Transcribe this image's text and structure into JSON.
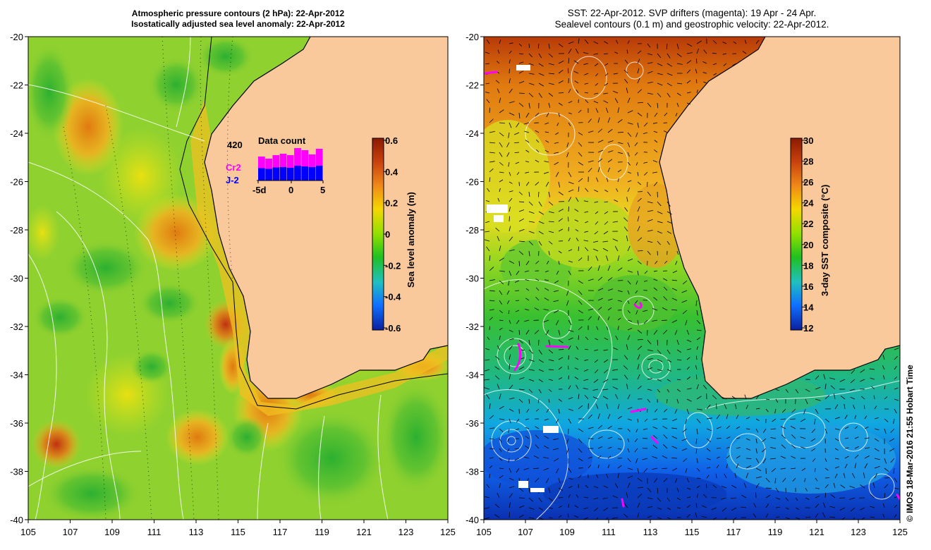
{
  "left_panel": {
    "title_line1": "Atmospheric pressure contours (2 hPa): 22-Apr-2012",
    "title_line2": "Isostatically adjusted sea level anomaly: 22-Apr-2012",
    "colorbar": {
      "label": "Sea level anomaly (m)",
      "ticks": [
        "0.6",
        "0.4",
        "0.2",
        "0",
        "-0.2",
        "-0.4",
        "-0.6"
      ],
      "colors": [
        "#8b1a00",
        "#d9541a",
        "#f0a020",
        "#f5e000",
        "#90e000",
        "#20c020",
        "#20c0c0",
        "#1070ff",
        "#0a20a0"
      ]
    },
    "inset": {
      "title": "Data count",
      "max_label": "420",
      "series": [
        {
          "name": "Cr2",
          "color": "#ff00ff"
        },
        {
          "name": "J-2",
          "color": "#0000ff"
        }
      ],
      "xticks": [
        "-5d",
        "0",
        "5"
      ],
      "bars_j2": [
        0.35,
        0.33,
        0.37,
        0.38,
        0.36,
        0.42,
        0.4,
        0.38,
        0.42
      ],
      "bars_total": [
        0.68,
        0.62,
        0.72,
        0.76,
        0.72,
        0.92,
        0.86,
        0.74,
        0.9
      ]
    }
  },
  "right_panel": {
    "title_line1": "SST: 22-Apr-2012. SVP drifters (magenta): 19 Apr - 24 Apr.",
    "title_line2": "Sealevel contours (0.1 m) and geostrophic velocity: 22-Apr-2012.",
    "colorbar": {
      "label": "3-day SST composite (°C)",
      "ticks": [
        "30",
        "28",
        "26",
        "24",
        "22",
        "20",
        "18",
        "16",
        "14",
        "12"
      ],
      "colors": [
        "#8b1a00",
        "#d9541a",
        "#f0a020",
        "#f5e000",
        "#90e000",
        "#20c020",
        "#20c0c0",
        "#1070ff",
        "#0a20a0"
      ]
    }
  },
  "axes": {
    "xticks": [
      "105",
      "107",
      "109",
      "111",
      "113",
      "115",
      "117",
      "119",
      "121",
      "123",
      "125"
    ],
    "yticks": [
      "-20",
      "-22",
      "-24",
      "-26",
      "-28",
      "-30",
      "-32",
      "-34",
      "-36",
      "-38",
      "-40"
    ]
  },
  "colors": {
    "land": "#f9c89b",
    "left_ocean_base": "#8fd12f",
    "right_ocean_north": "#e89a1a",
    "right_ocean_south": "#1a6fe0"
  },
  "credit": "© IMOS 18-Mar-2016 21:55 Hobart Time"
}
